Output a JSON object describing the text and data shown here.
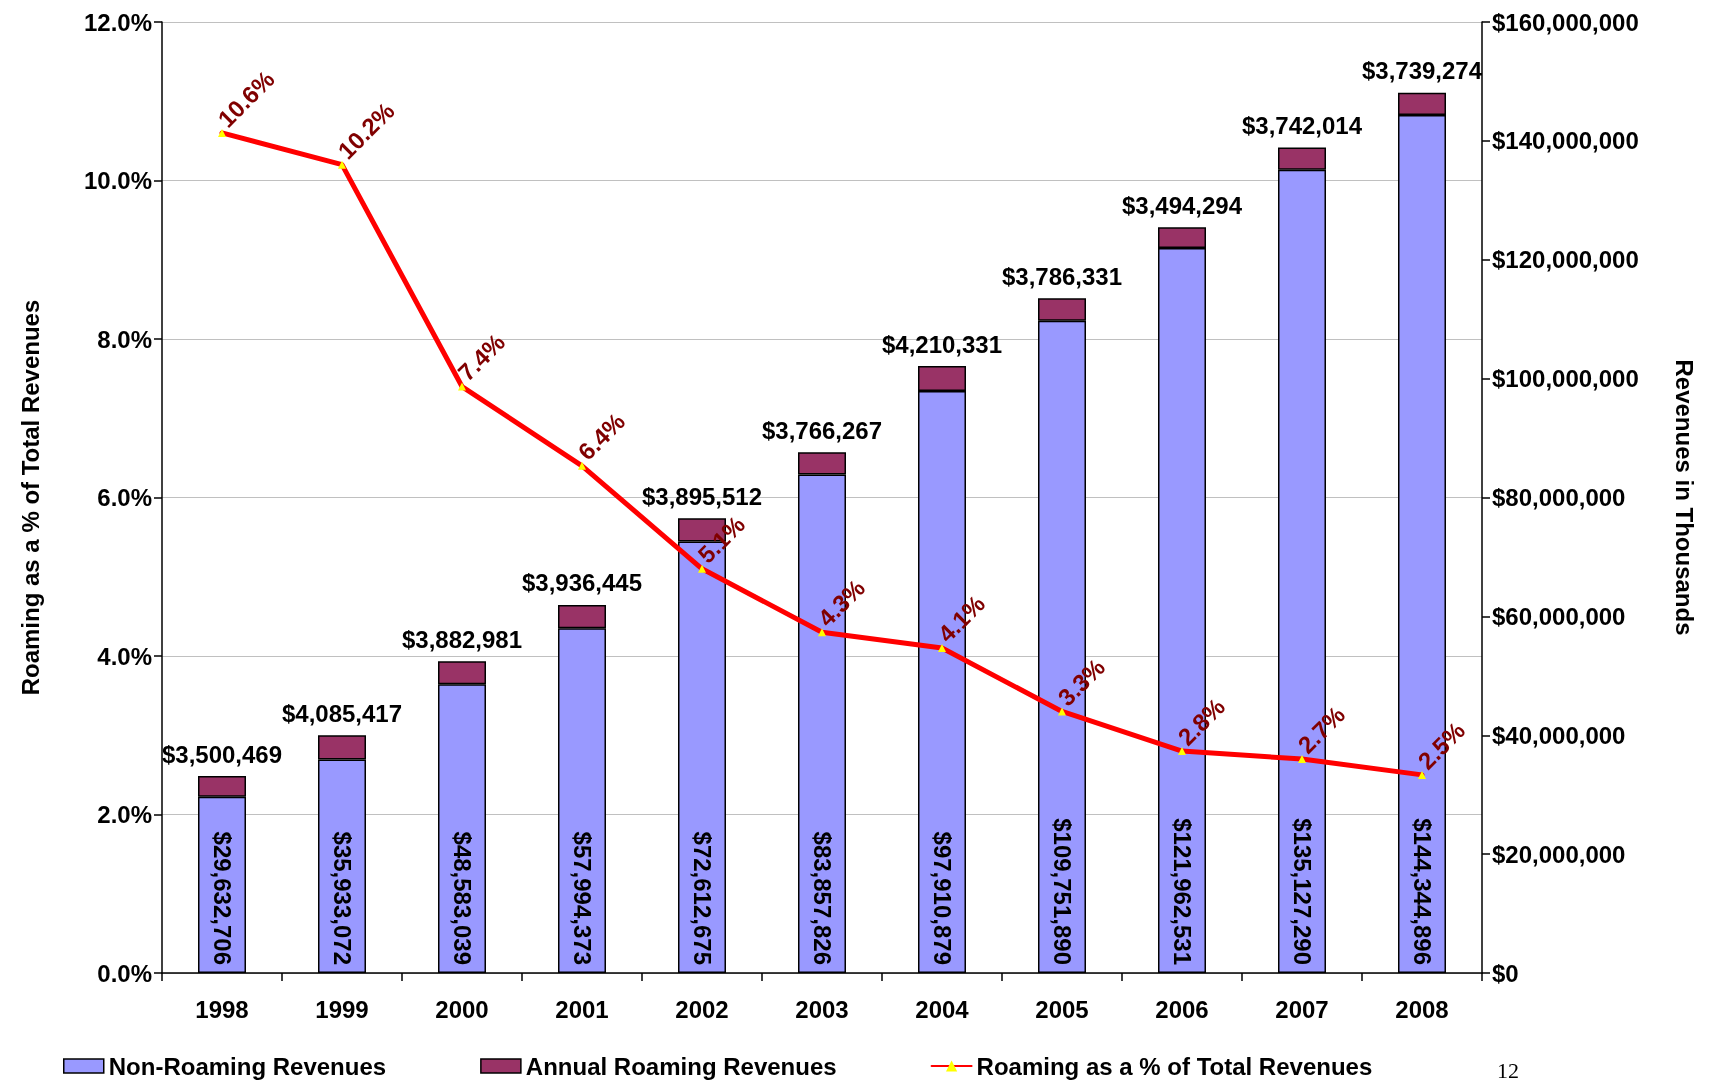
{
  "chart_data": {
    "type": "bar",
    "categories": [
      "1998",
      "1999",
      "2000",
      "2001",
      "2002",
      "2003",
      "2004",
      "2005",
      "2006",
      "2007",
      "2008"
    ],
    "series": [
      {
        "name": "Non-Roaming Revenues",
        "axis": "y2",
        "color": "#9999ff",
        "values": [
          29632706,
          35933072,
          48583039,
          57994373,
          72612675,
          83857826,
          97910879,
          109751890,
          121962531,
          135127290,
          144344896
        ],
        "value_labels": [
          "$29,632,706",
          "$35,933,072",
          "$48,583,039",
          "$57,994,373",
          "$72,612,675",
          "$83,857,826",
          "$97,910,879",
          "$109,751,890",
          "$121,962,531",
          "$135,127,290",
          "$144,344,896"
        ]
      },
      {
        "name": "Annual Roaming Revenues",
        "axis": "y2",
        "color": "#993366",
        "values": [
          3500469,
          4085417,
          3882981,
          3936445,
          3895512,
          3766267,
          4210331,
          3786331,
          3494294,
          3742014,
          3739274
        ],
        "value_labels": [
          "$3,500,469",
          "$4,085,417",
          "$3,882,981",
          "$3,936,445",
          "$3,895,512",
          "$3,766,267",
          "$4,210,331",
          "$3,786,331",
          "$3,494,294",
          "$3,742,014",
          "$3,739,274"
        ]
      },
      {
        "name": "Roaming as a % of Total Revenues",
        "type": "line",
        "color": "#ff0000",
        "values": [
          10.6,
          10.2,
          7.4,
          6.4,
          5.1,
          4.3,
          4.1,
          3.3,
          2.8,
          2.7,
          2.5
        ],
        "value_labels": [
          "10.6%",
          "10.2%",
          "7.4%",
          "6.4%",
          "5.1%",
          "4.3%",
          "4.1%",
          "3.3%",
          "2.8%",
          "2.7%",
          "2.5%"
        ]
      }
    ],
    "stacked": true,
    "ylabel": "Roaming as a % of Total Revenues",
    "y2label": "Revenues in Thousands",
    "ylim": [
      0,
      12
    ],
    "yticks": [
      {
        "value": 0,
        "label": "0.0%"
      },
      {
        "value": 2,
        "label": "2.0%"
      },
      {
        "value": 4,
        "label": "4.0%"
      },
      {
        "value": 6,
        "label": "6.0%"
      },
      {
        "value": 8,
        "label": "8.0%"
      },
      {
        "value": 10,
        "label": "10.0%"
      },
      {
        "value": 12,
        "label": "12.0%"
      }
    ],
    "y2lim": [
      0,
      160000000
    ],
    "y2ticks": [
      {
        "value": 0,
        "label": "$0"
      },
      {
        "value": 20000000,
        "label": "$20,000,000"
      },
      {
        "value": 40000000,
        "label": "$40,000,000"
      },
      {
        "value": 60000000,
        "label": "$60,000,000"
      },
      {
        "value": 80000000,
        "label": "$80,000,000"
      },
      {
        "value": 100000000,
        "label": "$100,000,000"
      },
      {
        "value": 120000000,
        "label": "$120,000,000"
      },
      {
        "value": 140000000,
        "label": "$140,000,000"
      },
      {
        "value": 160000000,
        "label": "$160,000,000"
      }
    ],
    "grid": "y",
    "legend": "bottom",
    "marker": "triangle",
    "line_style": "solid",
    "annotations": [
      "12"
    ]
  }
}
